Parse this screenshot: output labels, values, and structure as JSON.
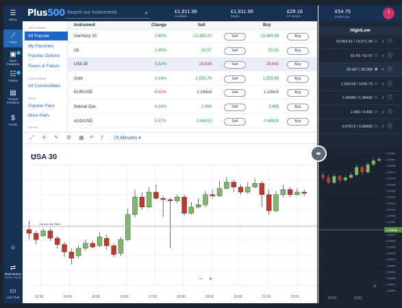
{
  "leftbar": {
    "menu": "Menu",
    "trade": "Trade",
    "open_positions": "Open Positions",
    "orders": "Orders",
    "closed_positions": "Closed Positions",
    "funds": "Funds",
    "real_money": "Real Money",
    "demo_mode": "Demo Mode",
    "live_chat": "Live Chat",
    "open_badge": "3",
    "orders_badge": "1"
  },
  "header": {
    "logo_a": "Plus",
    "logo_b": "500",
    "search_placeholder": "Search our Instruments",
    "available": {
      "value": "£1,911.96",
      "label": "Available"
    },
    "equity": {
      "value": "£1,911.96",
      "label": "Equity"
    },
    "margin": {
      "value": "£28.16",
      "label": "M. Margin"
    },
    "profit_loss": {
      "value": "£54.75",
      "label": "Profit/Loss"
    },
    "avatar": "?"
  },
  "nav": {
    "most_popular": "Most Popular",
    "items": [
      "All Popular",
      "My Favorites",
      "Popular Options",
      "Risers & Fallers"
    ],
    "commodities": "Commodities",
    "commodities_items": [
      "All Commodities"
    ],
    "forex": "Forex",
    "forex_items": [
      "Popular Pairs",
      "More Pairs"
    ],
    "indices": "Indices"
  },
  "table": {
    "headers": {
      "instrument": "Instrument",
      "change": "Change",
      "sell": "Sell",
      "buy": "Buy",
      "highlow": "High/Low"
    },
    "rows": [
      {
        "name": "Germany 30",
        "change": "0.65%",
        "sell": "13,385.20",
        "buy": "13,389.38",
        "highlow": "13,569.51 / 13,571.49"
      },
      {
        "name": "Oil",
        "change": "1.85%",
        "sell": "50.57",
        "buy": "50.61",
        "highlow": "53.43 / 53.47"
      },
      {
        "name": "USA 30",
        "change": "0.52%",
        "sell": "28,936",
        "buy": "28,940",
        "highlow": "28.987 / 28.989"
      },
      {
        "name": "Gold",
        "change": "0.14%",
        "sell": "1,555.76",
        "buy": "1,555.88",
        "highlow": "1,643.09 / 1643.74"
      },
      {
        "name": "EUR/USD",
        "change": "-0.02%",
        "sell": "1.10414",
        "buy": "1.10419",
        "highlow": "1.08486 / 1.08492"
      },
      {
        "name": "Natural Gas",
        "change": "0.24%",
        "sell": "2.484",
        "buy": "2.488",
        "highlow": "2.486 / 4.492"
      },
      {
        "name": "AUD/USD",
        "change": "0.07%",
        "sell": "0.66910",
        "buy": "0.66918",
        "highlow": "0.67072 / 0.66800"
      }
    ],
    "sell_btn": "Sell",
    "buy_btn": "Buy"
  },
  "chart": {
    "title": "USA 30",
    "timeframe": "15 Minutes",
    "current_price_label": "Current Sell Rate",
    "current_price": "1.29000",
    "x_ticks": [
      "13:00",
      "14:00",
      "15:00",
      "16:00",
      "17:00",
      "18:00",
      "19:00",
      "20:00",
      "21:00",
      "22:00",
      "23:00",
      "11/21"
    ],
    "y_ticks": [
      "1.29300",
      "1.29281",
      "1.29234",
      "1.29217",
      "1.29200",
      "1.29183",
      "1.29166",
      "1.29149",
      "1.29132",
      "1.29115",
      "1.29098",
      "1.29081",
      "1.29064",
      "1.29047",
      "1.29030",
      "1.29013",
      "1.28996",
      "1.28979",
      "1.28962",
      "1.28945",
      "1.28928",
      "1.28911",
      "1.28894"
    ]
  },
  "chart_data": {
    "type": "candlestick",
    "title": "USA 30",
    "up_color": "#7ab86a",
    "down_color": "#c0392b",
    "candles": [
      [
        0.48,
        0.45,
        0.55,
        0.4
      ],
      [
        0.45,
        0.4,
        0.47,
        0.36
      ],
      [
        0.43,
        0.47,
        0.49,
        0.42
      ],
      [
        0.47,
        0.41,
        0.49,
        0.39
      ],
      [
        0.41,
        0.36,
        0.43,
        0.33
      ],
      [
        0.36,
        0.3,
        0.38,
        0.26
      ],
      [
        0.3,
        0.25,
        0.33,
        0.2
      ],
      [
        0.27,
        0.33,
        0.35,
        0.25
      ],
      [
        0.33,
        0.37,
        0.4,
        0.31
      ],
      [
        0.37,
        0.34,
        0.39,
        0.33
      ],
      [
        0.35,
        0.42,
        0.46,
        0.34
      ],
      [
        0.41,
        0.35,
        0.44,
        0.32
      ],
      [
        0.35,
        0.28,
        0.37,
        0.26
      ],
      [
        0.29,
        0.4,
        0.42,
        0.27
      ],
      [
        0.4,
        0.6,
        0.65,
        0.39
      ],
      [
        0.6,
        0.74,
        0.8,
        0.58
      ],
      [
        0.74,
        0.66,
        0.78,
        0.64
      ],
      [
        0.66,
        0.78,
        0.82,
        0.65
      ],
      [
        0.78,
        0.73,
        0.84,
        0.72
      ],
      [
        0.73,
        0.72,
        0.75,
        0.58
      ],
      [
        0.72,
        0.71,
        0.73,
        0.33
      ],
      [
        0.71,
        0.74,
        0.76,
        0.69
      ],
      [
        0.74,
        0.61,
        0.76,
        0.59
      ],
      [
        0.61,
        0.66,
        0.7,
        0.6
      ],
      [
        0.66,
        0.68,
        0.73,
        0.65
      ],
      [
        0.68,
        0.76,
        0.79,
        0.66
      ],
      [
        0.76,
        0.75,
        0.8,
        0.73
      ],
      [
        0.75,
        0.81,
        0.87,
        0.74
      ],
      [
        0.81,
        0.86,
        0.9,
        0.8
      ],
      [
        0.86,
        0.82,
        0.88,
        0.78
      ],
      [
        0.82,
        0.78,
        0.84,
        0.76
      ],
      [
        0.78,
        0.82,
        0.86,
        0.77
      ],
      [
        0.82,
        0.85,
        0.89,
        0.81
      ],
      [
        0.85,
        0.76,
        0.87,
        0.66
      ],
      [
        0.76,
        0.63,
        0.8,
        0.6
      ],
      [
        0.63,
        0.76,
        0.79,
        0.62
      ],
      [
        0.76,
        0.8,
        0.84,
        0.74
      ],
      [
        0.8,
        0.76,
        0.82,
        0.74
      ],
      [
        0.76,
        0.78,
        0.81,
        0.75
      ],
      [
        0.78,
        0.77,
        0.8,
        0.75
      ]
    ],
    "right_candles": [
      [
        0.8,
        0.78,
        0.82,
        0.76
      ],
      [
        0.78,
        0.74,
        0.8,
        0.73
      ],
      [
        0.74,
        0.79,
        0.81,
        0.73
      ],
      [
        0.79,
        0.76,
        0.8,
        0.74
      ],
      [
        0.76,
        0.78,
        0.8,
        0.75
      ],
      [
        0.78,
        0.8,
        0.82,
        0.77
      ],
      [
        0.8,
        0.86,
        0.88,
        0.79
      ],
      [
        0.86,
        0.82,
        0.87,
        0.8
      ],
      [
        0.82,
        0.88,
        0.9,
        0.81
      ],
      [
        0.88,
        0.91,
        0.93,
        0.87
      ],
      [
        0.91,
        0.92,
        0.94,
        0.9
      ]
    ]
  }
}
